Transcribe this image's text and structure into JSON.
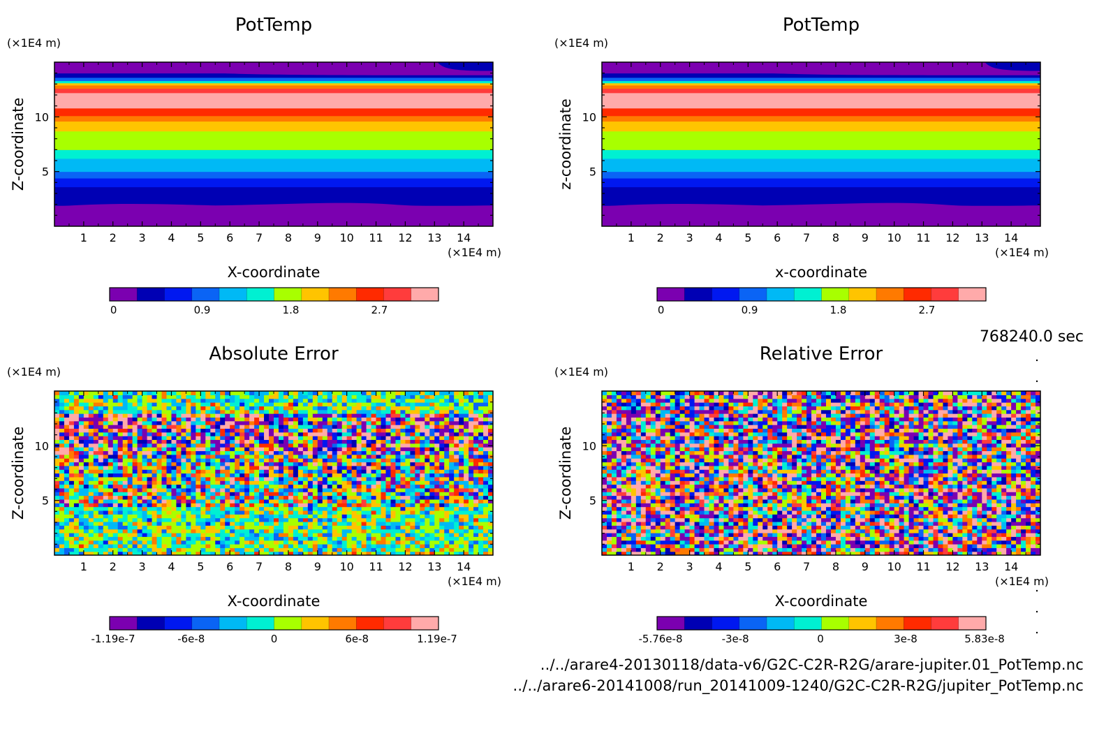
{
  "colors": {
    "palette": [
      "#7b00b0",
      "#0000b4",
      "#0018f0",
      "#0a64f5",
      "#00b9f5",
      "#00f0d2",
      "#a8ff00",
      "#ffc400",
      "#ff7a00",
      "#ff2a00",
      "#ff3c3c",
      "#ffaaaa"
    ]
  },
  "timestamp": "768240.0 sec",
  "files": [
    "../../arare4-20130118/data-v6/G2C-C2R-R2G/arare-jupiter.01_PotTemp.nc",
    "../../arare6-20141008/run_20141009-1240/G2C-C2R-R2G/jupiter_PotTemp.nc"
  ],
  "chart_data": [
    {
      "type": "heatmap",
      "title": "PotTemp",
      "xlabel": "X-coordinate",
      "ylabel": "Z-coordinate",
      "x_unit": "(×1E4 m)",
      "y_unit": "(×1E4 m)",
      "xlim": [
        0,
        15
      ],
      "ylim": [
        0,
        15
      ],
      "xticks": [
        "1",
        "2",
        "3",
        "4",
        "5",
        "6",
        "7",
        "8",
        "9",
        "10",
        "11",
        "12",
        "13",
        "14"
      ],
      "yticks": [
        "5",
        "10"
      ],
      "bands": [
        {
          "z": [
            0,
            1.9
          ],
          "level": 0
        },
        {
          "z": [
            1.9,
            2.6
          ],
          "level": 1
        },
        {
          "z": [
            2.6,
            3.6
          ],
          "level": 1
        },
        {
          "z": [
            3.6,
            4.4
          ],
          "level": 2
        },
        {
          "z": [
            4.4,
            5.0
          ],
          "level": 3
        },
        {
          "z": [
            5.0,
            6.2
          ],
          "level": 4
        },
        {
          "z": [
            6.2,
            7.0
          ],
          "level": 5
        },
        {
          "z": [
            7.0,
            8.7
          ],
          "level": 6
        },
        {
          "z": [
            8.7,
            9.6
          ],
          "level": 7
        },
        {
          "z": [
            9.6,
            10.1
          ],
          "level": 8
        },
        {
          "z": [
            10.1,
            10.8
          ],
          "level": 9
        },
        {
          "z": [
            10.8,
            12.2
          ],
          "level": 11
        },
        {
          "z": [
            12.2,
            12.6
          ],
          "level": 10
        },
        {
          "z": [
            12.6,
            12.9
          ],
          "level": 8
        },
        {
          "z": [
            12.9,
            13.1
          ],
          "level": 7
        },
        {
          "z": [
            13.1,
            13.3
          ],
          "level": 5
        },
        {
          "z": [
            13.3,
            13.6
          ],
          "level": 3
        },
        {
          "z": [
            13.6,
            14.0
          ],
          "level": 1
        },
        {
          "z": [
            14.0,
            15.0
          ],
          "level": 0
        }
      ],
      "colorbar": {
        "ticks": [
          "0",
          "0.9",
          "1.8",
          "2.7"
        ],
        "tick_values": [
          0,
          0.9,
          1.8,
          2.7
        ],
        "range": [
          -0.04,
          3.3
        ]
      }
    },
    {
      "type": "heatmap",
      "title": "PotTemp",
      "xlabel": "x-coordinate",
      "ylabel": "z-coordinate",
      "x_unit": "(×1E4 m)",
      "y_unit": "(×1E4 m)",
      "xlim": [
        0,
        15
      ],
      "ylim": [
        0,
        15
      ],
      "xticks": [
        "1",
        "2",
        "3",
        "4",
        "5",
        "6",
        "7",
        "8",
        "9",
        "10",
        "11",
        "12",
        "13",
        "14"
      ],
      "yticks": [
        "5",
        "10"
      ],
      "bands": "same as PotTemp panel 1",
      "colorbar": {
        "ticks": [
          "0",
          "0.9",
          "1.8",
          "2.7"
        ],
        "tick_values": [
          0,
          0.9,
          1.8,
          2.7
        ],
        "range": [
          -0.04,
          3.3
        ]
      }
    },
    {
      "type": "heatmap",
      "title": "Absolute Error",
      "xlabel": "X-coordinate",
      "ylabel": "Z-coordinate",
      "x_unit": "(×1E4 m)",
      "y_unit": "(×1E4 m)",
      "xlim": [
        0,
        15
      ],
      "ylim": [
        0,
        15
      ],
      "xticks": [
        "1",
        "2",
        "3",
        "4",
        "5",
        "6",
        "7",
        "8",
        "9",
        "10",
        "11",
        "12",
        "13",
        "14"
      ],
      "yticks": [
        "5",
        "10"
      ],
      "field": "noise",
      "colorbar": {
        "ticks": [
          "-1.19e-7",
          "-6e-8",
          "0",
          "6e-8",
          "1.19e-7"
        ],
        "range": [
          -1.19e-07,
          1.19e-07
        ]
      }
    },
    {
      "type": "heatmap",
      "title": "Relative Error",
      "xlabel": "X-coordinate",
      "ylabel": "Z-coordinate",
      "x_unit": "(×1E4 m)",
      "y_unit": "(×1E4 m)",
      "xlim": [
        0,
        15
      ],
      "ylim": [
        0,
        15
      ],
      "xticks": [
        "1",
        "2",
        "3",
        "4",
        "5",
        "6",
        "7",
        "8",
        "9",
        "10",
        "11",
        "12",
        "13",
        "14"
      ],
      "yticks": [
        "5",
        "10"
      ],
      "field": "noise",
      "colorbar": {
        "ticks": [
          "-5.76e-8",
          "-3e-8",
          "0",
          "3e-8",
          "5.83e-8"
        ],
        "range": [
          -5.76e-08,
          5.83e-08
        ]
      }
    }
  ]
}
